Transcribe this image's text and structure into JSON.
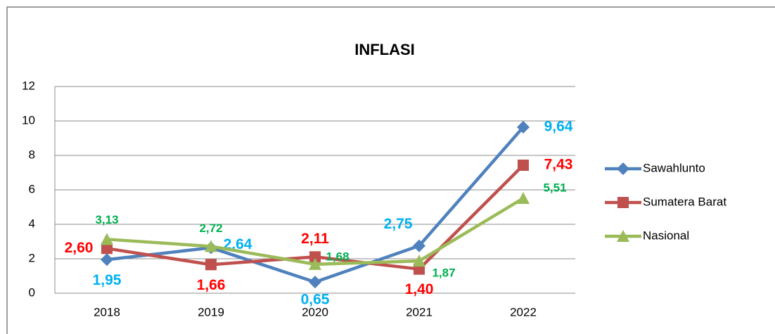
{
  "chart_data": {
    "type": "line",
    "title": "INFLASI",
    "categories": [
      "2018",
      "2019",
      "2020",
      "2021",
      "2022"
    ],
    "ylim": [
      0,
      12
    ],
    "yticks": [
      0,
      2,
      4,
      6,
      8,
      10,
      12
    ],
    "grid": true,
    "legend": "right",
    "series": [
      {
        "name": "Sawahlunto",
        "color": "#4f81bd",
        "label_color": "#00b0f0",
        "marker": "diamond",
        "values": [
          1.95,
          2.64,
          0.65,
          2.75,
          9.64
        ],
        "value_labels": [
          "1,95",
          "2,64",
          "0,65",
          "2,75",
          "9,64"
        ]
      },
      {
        "name": "Sumatera Barat",
        "color": "#c0504d",
        "label_color": "#ff0000",
        "marker": "square",
        "values": [
          2.6,
          1.66,
          2.11,
          1.4,
          7.43
        ],
        "value_labels": [
          "2,60",
          "1,66",
          "2,11",
          "1,40",
          "7,43"
        ]
      },
      {
        "name": "Nasional",
        "color": "#9bbb59",
        "label_color": "#00b050",
        "marker": "triangle",
        "values": [
          3.13,
          2.72,
          1.68,
          1.87,
          5.51
        ],
        "value_labels": [
          "3,13",
          "2,72",
          "1,68",
          "1,87",
          "5,51"
        ]
      }
    ]
  }
}
